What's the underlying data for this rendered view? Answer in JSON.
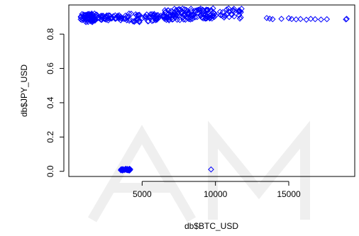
{
  "chart_data": {
    "type": "scatter",
    "xlabel": "db$BTC_USD",
    "ylabel": "db$JPY_USD",
    "xlim": [
      0,
      19500
    ],
    "ylim": [
      -0.03,
      0.97
    ],
    "x_ticks": [
      5000,
      10000,
      15000
    ],
    "y_ticks": [
      0.0,
      0.2,
      0.4,
      0.6,
      0.8
    ],
    "y_tick_labels": [
      "0.0",
      "0.2",
      "0.4",
      "0.6",
      "0.8"
    ],
    "x_tick_labels": [
      "5000",
      "10000",
      "15000"
    ],
    "point_color": "#0000ff",
    "marker": "open-diamond",
    "clusters": [
      {
        "x_range": [
          800,
          2000
        ],
        "y_range": [
          0.87,
          0.92
        ],
        "count": 70
      },
      {
        "x_range": [
          2000,
          4000
        ],
        "y_range": [
          0.88,
          0.91
        ],
        "count": 45
      },
      {
        "x_range": [
          4000,
          6500
        ],
        "y_range": [
          0.87,
          0.92
        ],
        "count": 50
      },
      {
        "x_range": [
          6500,
          8500
        ],
        "y_range": [
          0.88,
          0.95
        ],
        "count": 70
      },
      {
        "x_range": [
          8500,
          10000
        ],
        "y_range": [
          0.89,
          0.95
        ],
        "count": 45
      },
      {
        "x_range": [
          10000,
          11800
        ],
        "y_range": [
          0.89,
          0.95
        ],
        "count": 30
      },
      {
        "x_range": [
          3500,
          4200
        ],
        "y_range": [
          0.005,
          0.015
        ],
        "count": 40
      }
    ],
    "points": [
      {
        "x": 13500,
        "y": 0.894
      },
      {
        "x": 13700,
        "y": 0.89
      },
      {
        "x": 13900,
        "y": 0.887
      },
      {
        "x": 14500,
        "y": 0.889
      },
      {
        "x": 15000,
        "y": 0.893
      },
      {
        "x": 15200,
        "y": 0.888
      },
      {
        "x": 15500,
        "y": 0.886
      },
      {
        "x": 15800,
        "y": 0.888
      },
      {
        "x": 16200,
        "y": 0.884
      },
      {
        "x": 16500,
        "y": 0.889
      },
      {
        "x": 16800,
        "y": 0.887
      },
      {
        "x": 17200,
        "y": 0.885
      },
      {
        "x": 17600,
        "y": 0.887
      },
      {
        "x": 18900,
        "y": 0.886
      },
      {
        "x": 18950,
        "y": 0.889
      },
      {
        "x": 9700,
        "y": 0.011
      }
    ]
  }
}
